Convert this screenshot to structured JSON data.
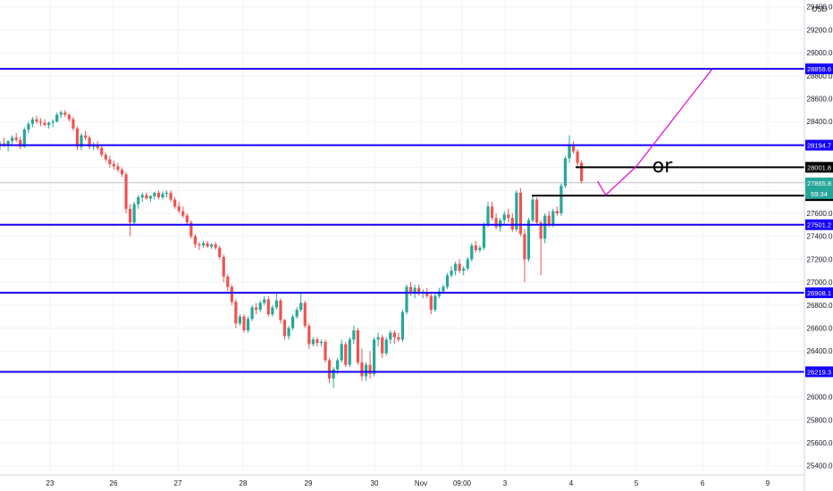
{
  "chart_data": {
    "type": "candlestick",
    "currency": "USD",
    "x_tick_labels": [
      "23",
      "26",
      "27",
      "28",
      "29",
      "30",
      "Nov",
      "09:00",
      "3",
      "4",
      "5",
      "6",
      "9"
    ],
    "y_ticks": [
      "25400.0",
      "25600.0",
      "25800.0",
      "26000.0",
      "26200.0",
      "26400.0",
      "26600.0",
      "26800.0",
      "27000.0",
      "27200.0",
      "27400.0",
      "27600.0",
      "27800.0",
      "28000.0",
      "28200.0",
      "28400.0",
      "28600.0",
      "28800.0",
      "29000.0",
      "29200.0",
      "29400.0"
    ],
    "ylim": [
      25320,
      29460
    ],
    "horizontal_levels": [
      {
        "value": 28859.6,
        "label": "28859.6",
        "color": "#1400ff"
      },
      {
        "value": 28194.7,
        "label": "28194.7",
        "color": "#1400ff"
      },
      {
        "value": 27501.2,
        "label": "27501.2",
        "color": "#1400ff"
      },
      {
        "value": 26908.1,
        "label": "26908.1",
        "color": "#1400ff"
      },
      {
        "value": 26219.3,
        "label": "26219.3",
        "color": "#1400ff"
      }
    ],
    "drawn_segments": [
      {
        "value": 28001.8,
        "label": "28001.8",
        "color": "#000000",
        "start_label": "4"
      },
      {
        "value": 27754.6,
        "label": "27754.6",
        "color": "#000000",
        "start_label": "3"
      }
    ],
    "current_price": {
      "value": 27865.8,
      "label": "27865.8",
      "countdown": "59:34",
      "color": "#26a69a"
    },
    "annotation_text": "or",
    "projection_path_color": "#e000e0",
    "projection_path": [
      {
        "x_label": "4",
        "x_offset_bars": 6.5,
        "y": 27880
      },
      {
        "x_label": "4",
        "x_offset_bars": 8.5,
        "y": 27760
      },
      {
        "x_label": "5",
        "x_offset_bars": 0,
        "y": 28010
      },
      {
        "x_label": "6",
        "x_offset_bars": 0,
        "y": 28860
      }
    ],
    "colors": {
      "up": "#26a69a",
      "down": "#ef5350"
    },
    "candles": [
      [
        28190,
        28230,
        28150,
        28210
      ],
      [
        28210,
        28260,
        28180,
        28200
      ],
      [
        28200,
        28240,
        28140,
        28230
      ],
      [
        28230,
        28280,
        28200,
        28260
      ],
      [
        28260,
        28300,
        28220,
        28240
      ],
      [
        28240,
        28270,
        28160,
        28180
      ],
      [
        28180,
        28350,
        28170,
        28330
      ],
      [
        28330,
        28400,
        28300,
        28380
      ],
      [
        28380,
        28440,
        28350,
        28420
      ],
      [
        28420,
        28450,
        28380,
        28400
      ],
      [
        28400,
        28430,
        28360,
        28390
      ],
      [
        28390,
        28420,
        28360,
        28370
      ],
      [
        28370,
        28400,
        28340,
        28390
      ],
      [
        28390,
        28420,
        28350,
        28400
      ],
      [
        28400,
        28480,
        28390,
        28460
      ],
      [
        28460,
        28500,
        28430,
        28480
      ],
      [
        28480,
        28500,
        28440,
        28460
      ],
      [
        28460,
        28470,
        28400,
        28420
      ],
      [
        28420,
        28440,
        28320,
        28340
      ],
      [
        28340,
        28360,
        28150,
        28180
      ],
      [
        28180,
        28300,
        28150,
        28280
      ],
      [
        28280,
        28320,
        28240,
        28260
      ],
      [
        28260,
        28280,
        28160,
        28180
      ],
      [
        28180,
        28220,
        28150,
        28200
      ],
      [
        28200,
        28230,
        28150,
        28170
      ],
      [
        28170,
        28190,
        28090,
        28110
      ],
      [
        28110,
        28130,
        28050,
        28070
      ],
      [
        28070,
        28100,
        28000,
        28030
      ],
      [
        28030,
        28060,
        27980,
        28010
      ],
      [
        28010,
        28040,
        27960,
        27980
      ],
      [
        27980,
        28000,
        27920,
        27940
      ],
      [
        27940,
        27960,
        27600,
        27640
      ],
      [
        27640,
        27680,
        27400,
        27520
      ],
      [
        27520,
        27700,
        27500,
        27680
      ],
      [
        27680,
        27760,
        27640,
        27740
      ],
      [
        27740,
        27780,
        27700,
        27760
      ],
      [
        27760,
        27780,
        27720,
        27730
      ],
      [
        27730,
        27760,
        27700,
        27750
      ],
      [
        27750,
        27790,
        27720,
        27780
      ],
      [
        27780,
        27800,
        27720,
        27740
      ],
      [
        27740,
        27790,
        27720,
        27770
      ],
      [
        27770,
        27800,
        27740,
        27780
      ],
      [
        27780,
        27800,
        27700,
        27720
      ],
      [
        27720,
        27740,
        27640,
        27660
      ],
      [
        27660,
        27700,
        27600,
        27620
      ],
      [
        27620,
        27660,
        27560,
        27580
      ],
      [
        27580,
        27600,
        27500,
        27520
      ],
      [
        27520,
        27540,
        27380,
        27400
      ],
      [
        27400,
        27420,
        27300,
        27330
      ],
      [
        27330,
        27350,
        27280,
        27320
      ],
      [
        27320,
        27360,
        27300,
        27340
      ],
      [
        27340,
        27360,
        27300,
        27310
      ],
      [
        27310,
        27340,
        27290,
        27330
      ],
      [
        27330,
        27350,
        27280,
        27300
      ],
      [
        27300,
        27320,
        27200,
        27220
      ],
      [
        27220,
        27240,
        27000,
        27050
      ],
      [
        27050,
        27070,
        26920,
        26960
      ],
      [
        26960,
        26980,
        26800,
        26830
      ],
      [
        26830,
        26850,
        26600,
        26640
      ],
      [
        26640,
        26720,
        26620,
        26700
      ],
      [
        26700,
        26720,
        26560,
        26580
      ],
      [
        26580,
        26700,
        26560,
        26680
      ],
      [
        26680,
        26800,
        26660,
        26780
      ],
      [
        26780,
        26820,
        26720,
        26760
      ],
      [
        26760,
        26840,
        26740,
        26820
      ],
      [
        26820,
        26880,
        26800,
        26850
      ],
      [
        26850,
        26880,
        26700,
        26720
      ],
      [
        26720,
        26800,
        26700,
        26780
      ],
      [
        26780,
        26900,
        26760,
        26840
      ],
      [
        26840,
        26860,
        26640,
        26670
      ],
      [
        26670,
        26680,
        26500,
        26530
      ],
      [
        26530,
        26620,
        26500,
        26600
      ],
      [
        26600,
        26720,
        26580,
        26700
      ],
      [
        26700,
        26780,
        26680,
        26760
      ],
      [
        26760,
        26900,
        26740,
        26820
      ],
      [
        26820,
        26840,
        26600,
        26620
      ],
      [
        26620,
        26640,
        26420,
        26460
      ],
      [
        26460,
        26520,
        26440,
        26500
      ],
      [
        26500,
        26520,
        26440,
        26470
      ],
      [
        26470,
        26500,
        26440,
        26480
      ],
      [
        26480,
        26500,
        26300,
        26320
      ],
      [
        26320,
        26340,
        26120,
        26160
      ],
      [
        26160,
        26260,
        26080,
        26240
      ],
      [
        26240,
        26340,
        26200,
        26320
      ],
      [
        26320,
        26500,
        26300,
        26460
      ],
      [
        26460,
        26480,
        26260,
        26280
      ],
      [
        26280,
        26520,
        26260,
        26500
      ],
      [
        26500,
        26620,
        26460,
        26580
      ],
      [
        26580,
        26600,
        26280,
        26300
      ],
      [
        26300,
        26420,
        26140,
        26180
      ],
      [
        26180,
        26300,
        26140,
        26280
      ],
      [
        26280,
        26400,
        26160,
        26200
      ],
      [
        26200,
        26520,
        26180,
        26500
      ],
      [
        26500,
        26560,
        26440,
        26520
      ],
      [
        26520,
        26540,
        26340,
        26380
      ],
      [
        26380,
        26520,
        26360,
        26500
      ],
      [
        26500,
        26580,
        26460,
        26560
      ],
      [
        26560,
        26580,
        26460,
        26520
      ],
      [
        26520,
        26560,
        26480,
        26500
      ],
      [
        26500,
        26760,
        26480,
        26740
      ],
      [
        26740,
        26980,
        26720,
        26960
      ],
      [
        26960,
        27000,
        26880,
        26900
      ],
      [
        26900,
        26980,
        26860,
        26950
      ],
      [
        26950,
        26980,
        26880,
        26900
      ],
      [
        26900,
        26940,
        26860,
        26910
      ],
      [
        26910,
        26950,
        26860,
        26880
      ],
      [
        26880,
        26900,
        26720,
        26760
      ],
      [
        26760,
        26900,
        26740,
        26880
      ],
      [
        26880,
        26950,
        26860,
        26920
      ],
      [
        26920,
        26980,
        26900,
        26960
      ],
      [
        26960,
        27080,
        26940,
        27060
      ],
      [
        27060,
        27140,
        27040,
        27100
      ],
      [
        27100,
        27180,
        27060,
        27160
      ],
      [
        27160,
        27200,
        27080,
        27100
      ],
      [
        27100,
        27140,
        27060,
        27120
      ],
      [
        27120,
        27220,
        27100,
        27200
      ],
      [
        27200,
        27340,
        27180,
        27320
      ],
      [
        27320,
        27360,
        27260,
        27280
      ],
      [
        27280,
        27320,
        27260,
        27300
      ],
      [
        27300,
        27520,
        27280,
        27500
      ],
      [
        27500,
        27700,
        27480,
        27660
      ],
      [
        27660,
        27700,
        27540,
        27560
      ],
      [
        27560,
        27600,
        27460,
        27480
      ],
      [
        27480,
        27560,
        27440,
        27540
      ],
      [
        27540,
        27620,
        27500,
        27590
      ],
      [
        27590,
        27640,
        27520,
        27560
      ],
      [
        27560,
        27600,
        27440,
        27460
      ],
      [
        27460,
        27800,
        27440,
        27780
      ],
      [
        27780,
        27820,
        27400,
        27420
      ],
      [
        27420,
        27460,
        27000,
        27200
      ],
      [
        27200,
        27560,
        27180,
        27540
      ],
      [
        27540,
        27760,
        27520,
        27720
      ],
      [
        27720,
        27740,
        27500,
        27520
      ],
      [
        27520,
        27540,
        27060,
        27380
      ],
      [
        27380,
        27600,
        27340,
        27580
      ],
      [
        27580,
        27620,
        27480,
        27500
      ],
      [
        27500,
        27640,
        27480,
        27620
      ],
      [
        27620,
        27660,
        27580,
        27600
      ],
      [
        27600,
        27860,
        27580,
        27840
      ],
      [
        27840,
        28100,
        27820,
        28080
      ],
      [
        28080,
        28280,
        28040,
        28200
      ],
      [
        28200,
        28230,
        28120,
        28140
      ],
      [
        28140,
        28160,
        28000,
        28040
      ],
      [
        28040,
        28060,
        27860,
        27880
      ]
    ]
  }
}
